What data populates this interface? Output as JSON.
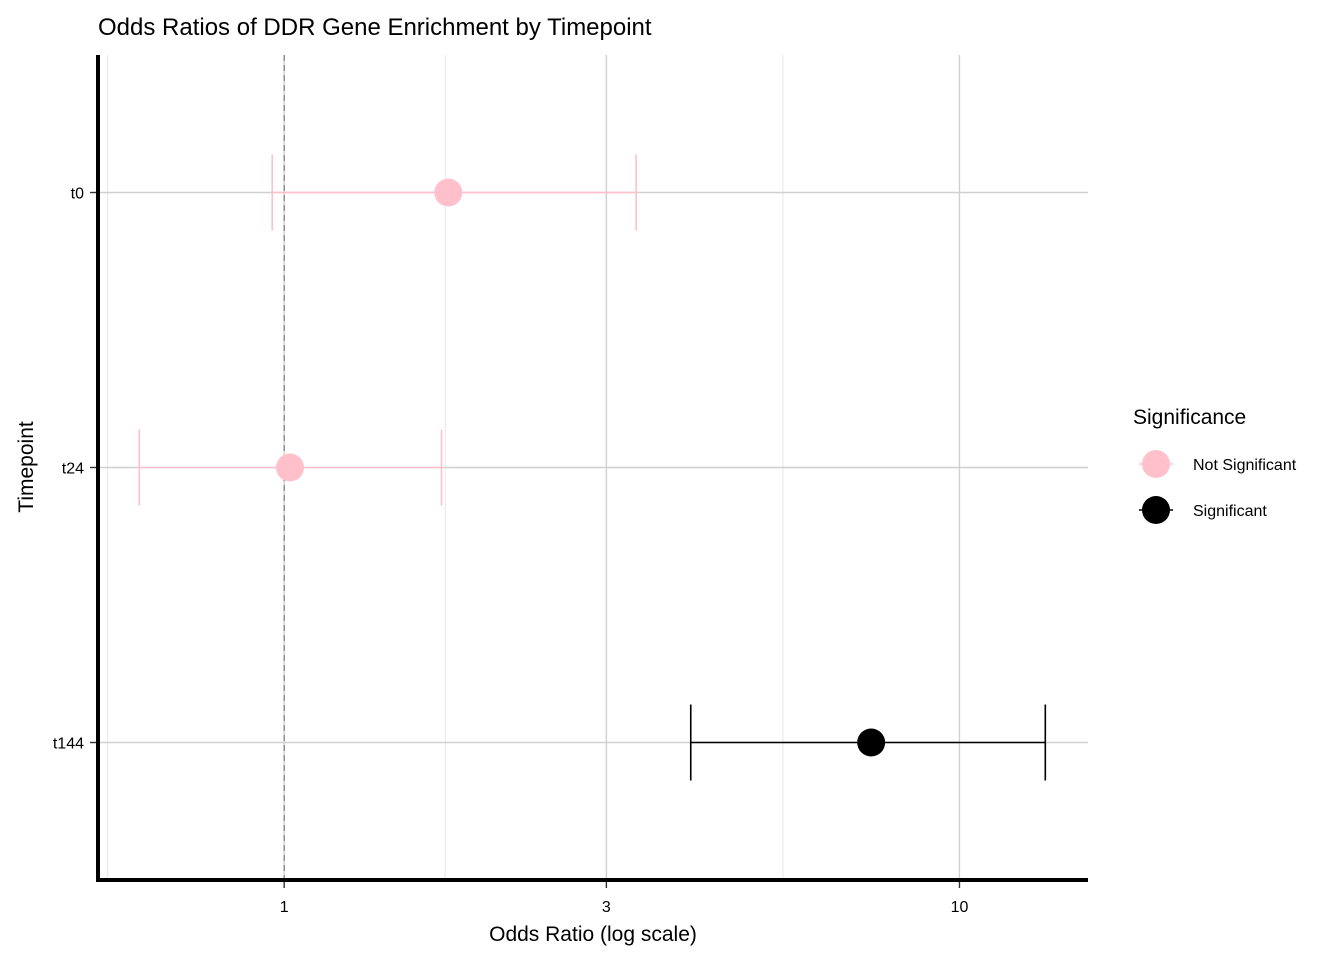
{
  "chart_data": {
    "type": "scatter",
    "title": "Odds Ratios of DDR Gene Enrichment by Timepoint",
    "xlabel": "Odds Ratio (log scale)",
    "ylabel": "Timepoint",
    "x_scale": "log",
    "x_ticks": [
      1,
      3,
      10
    ],
    "x_tick_labels": [
      "1",
      "3",
      "10"
    ],
    "x_minor_gridlines": [
      0.5477,
      1.7321,
      5.4772
    ],
    "xlim": [
      0.53,
      15.5
    ],
    "reference_line": 1,
    "grid": true,
    "categories": [
      "t0",
      "t24",
      "t144"
    ],
    "points": [
      {
        "timepoint": "t0",
        "or": 1.75,
        "lower": 0.96,
        "upper": 3.32,
        "group": "Not Significant"
      },
      {
        "timepoint": "t24",
        "or": 1.02,
        "lower": 0.61,
        "upper": 1.71,
        "group": "Not Significant"
      },
      {
        "timepoint": "t144",
        "or": 7.4,
        "lower": 4.0,
        "upper": 13.4,
        "group": "Significant"
      }
    ],
    "legend": {
      "title": "Significance",
      "position": "right",
      "entries": [
        {
          "label": "Not Significant",
          "color": "#ffc0cb"
        },
        {
          "label": "Significant",
          "color": "#000000"
        }
      ]
    }
  }
}
